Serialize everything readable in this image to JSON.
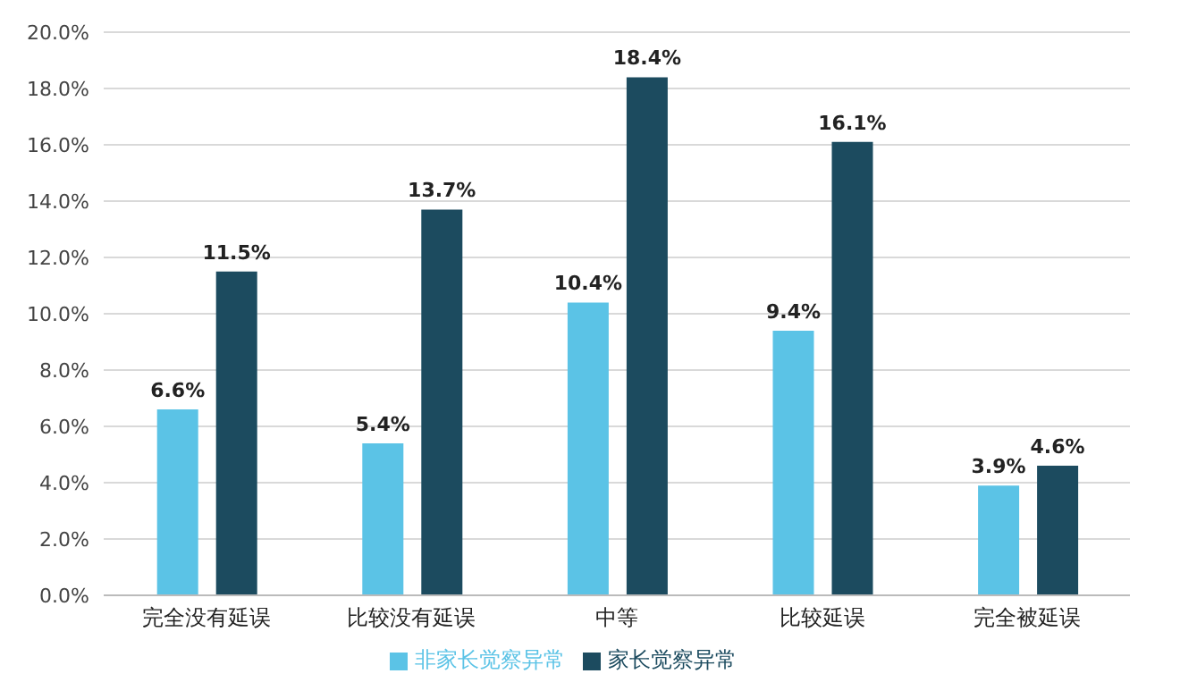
{
  "chart_data": {
    "type": "bar",
    "categories": [
      "完全没有延误",
      "比较没有延误",
      "中等",
      "比较延误",
      "完全被延误"
    ],
    "series": [
      {
        "name": "非家长觉察异常",
        "color": "#5bc3e6",
        "values": [
          6.6,
          5.4,
          10.4,
          9.4,
          3.9
        ],
        "value_labels": [
          "6.6%",
          "5.4%",
          "10.4%",
          "9.4%",
          "3.9%"
        ]
      },
      {
        "name": "家长觉察异常",
        "color": "#1c4b5f",
        "values": [
          11.5,
          13.7,
          18.4,
          16.1,
          4.6
        ],
        "value_labels": [
          "11.5%",
          "13.7%",
          "18.4%",
          "16.1%",
          "4.6%"
        ]
      }
    ],
    "ylim": [
      0,
      20
    ],
    "yticks": [
      {
        "value": 0,
        "label": "0.0%"
      },
      {
        "value": 2,
        "label": "2.0%"
      },
      {
        "value": 4,
        "label": "4.0%"
      },
      {
        "value": 6,
        "label": "6.0%"
      },
      {
        "value": 8,
        "label": "8.0%"
      },
      {
        "value": 10,
        "label": "10.0%"
      },
      {
        "value": 12,
        "label": "12.0%"
      },
      {
        "value": 14,
        "label": "14.0%"
      },
      {
        "value": 16,
        "label": "16.0%"
      },
      {
        "value": 18,
        "label": "18.0%"
      },
      {
        "value": 20,
        "label": "20.0%"
      }
    ],
    "grid": "y",
    "legend": "bottom"
  }
}
